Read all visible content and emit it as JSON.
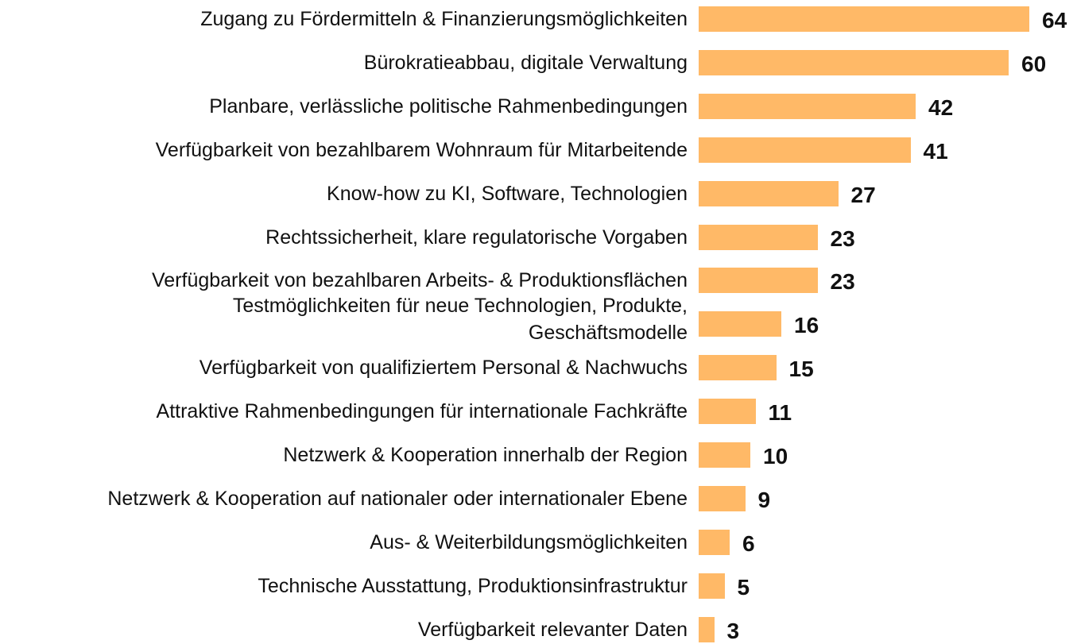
{
  "chart_data": {
    "type": "bar",
    "orientation": "horizontal",
    "color": "#ffb967",
    "categories": [
      "Zugang zu Fördermitteln & Finanzierungsmöglichkeiten",
      "Bürokratieabbau, digitale Verwaltung",
      "Planbare, verlässliche politische Rahmenbedingungen",
      "Verfügbarkeit von bezahlbarem Wohnraum für Mitarbeitende",
      "Know-how zu KI, Software, Technologien",
      "Rechtssicherheit, klare regulatorische Vorgaben",
      "Verfügbarkeit von bezahlbaren Arbeits- & Produktionsflächen",
      "Testmöglichkeiten für neue Technologien, Produkte,\nGeschäftsmodelle",
      "Verfügbarkeit von qualifiziertem Personal & Nachwuchs",
      "Attraktive Rahmenbedingungen für internationale Fachkräfte",
      "Netzwerk & Kooperation innerhalb der Region",
      "Netzwerk & Kooperation auf nationaler oder internationaler Ebene",
      "Aus- & Weiterbildungsmöglichkeiten",
      "Technische Ausstattung, Produktionsinfrastruktur",
      "Verfügbarkeit relevanter Daten"
    ],
    "values": [
      64,
      60,
      42,
      41,
      27,
      23,
      23,
      16,
      15,
      11,
      10,
      9,
      6,
      5,
      3
    ]
  }
}
